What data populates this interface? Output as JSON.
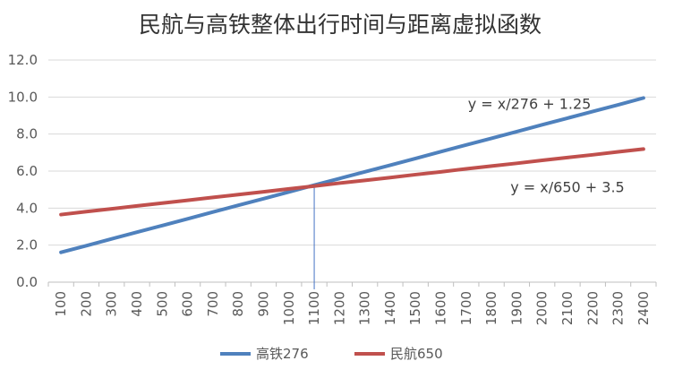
{
  "chart_data": {
    "type": "line",
    "title": "民航与高铁整体出行时间与距离虚拟函数",
    "x": [
      100,
      200,
      300,
      400,
      500,
      600,
      700,
      800,
      900,
      1000,
      1100,
      1200,
      1300,
      1400,
      1500,
      1600,
      1700,
      1800,
      1900,
      2000,
      2100,
      2200,
      2300,
      2400
    ],
    "y_ticks": [
      "0.0",
      "2.0",
      "4.0",
      "6.0",
      "8.0",
      "10.0",
      "12.0"
    ],
    "ylim": [
      0,
      12
    ],
    "grid": true,
    "legend_position": "bottom",
    "series": [
      {
        "name": "高铁276",
        "color": "#4f81bd",
        "values": [
          1.61,
          1.97,
          2.34,
          2.7,
          3.06,
          3.42,
          3.79,
          4.15,
          4.51,
          4.87,
          5.24,
          5.6,
          5.96,
          6.32,
          6.68,
          7.05,
          7.41,
          7.77,
          8.13,
          8.5,
          8.86,
          9.22,
          9.58,
          9.95
        ]
      },
      {
        "name": "民航650",
        "color": "#c0504d",
        "values": [
          3.65,
          3.81,
          3.96,
          4.12,
          4.27,
          4.42,
          4.58,
          4.73,
          4.88,
          5.04,
          5.19,
          5.35,
          5.5,
          5.65,
          5.81,
          5.96,
          6.12,
          6.27,
          6.42,
          6.58,
          6.73,
          6.88,
          7.04,
          7.19
        ]
      }
    ],
    "annotations": [
      {
        "text": "y = x/276 + 1.25",
        "x": 1950,
        "y": 9.6
      },
      {
        "text": "y = x/650 + 3.5",
        "x": 2100,
        "y": 5.1
      }
    ],
    "reference_line": {
      "x": 1100,
      "color": "#4472c4"
    }
  }
}
